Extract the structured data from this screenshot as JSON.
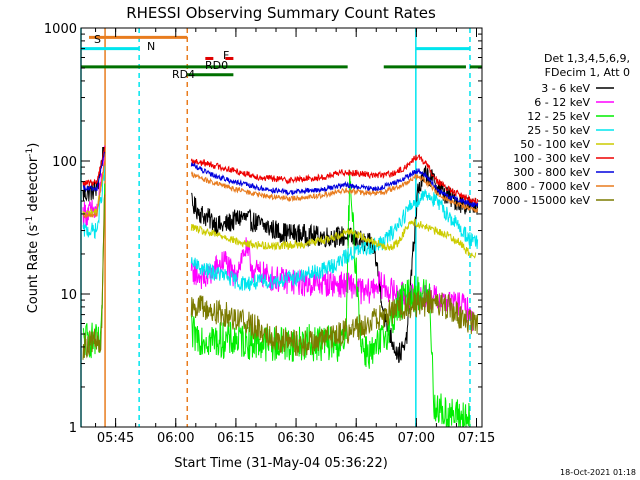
{
  "chart_data": {
    "type": "line",
    "title": "RHESSI Observing Summary Count Rates",
    "xlabel": "Start Time (31-May-04 05:36:22)",
    "ylabel_main": "Count Rate (s",
    "ylabel_sup1": "-1",
    "ylabel_mid": " detector",
    "ylabel_sup2": "-1",
    "ylabel_end": ")",
    "yscale": "log",
    "ylim": [
      1,
      1000
    ],
    "yticks": [
      {
        "value": 1,
        "label": "1"
      },
      {
        "value": 10,
        "label": "10"
      },
      {
        "value": 100,
        "label": "100"
      },
      {
        "value": 1000,
        "label": "1000"
      }
    ],
    "x_unit": "minutes since 05:36:22",
    "xlim": [
      0,
      100
    ],
    "xticks": [
      {
        "value": 8.63,
        "label": "05:45"
      },
      {
        "value": 23.63,
        "label": "06:00"
      },
      {
        "value": 38.63,
        "label": "06:15"
      },
      {
        "value": 53.63,
        "label": "06:30"
      },
      {
        "value": 68.63,
        "label": "06:45"
      },
      {
        "value": 83.63,
        "label": "07:00"
      },
      {
        "value": 98.63,
        "label": "07:15"
      }
    ],
    "legend": {
      "header1": "Det 1,3,4,5,6,9,",
      "header2": "FDecim 1, Att 0"
    },
    "flags": [
      {
        "label": "S",
        "color": "#e87c1e",
        "y": 850,
        "segments": [
          [
            2,
            26.5
          ]
        ]
      },
      {
        "label": "N",
        "color": "#00e5ee",
        "y": 700,
        "segments": [
          [
            0,
            14.5
          ],
          [
            83.5,
            97
          ]
        ]
      },
      {
        "label": "RD0",
        "color": "#007000",
        "y": 510,
        "segments": [
          [
            0,
            66.5
          ],
          [
            75.5,
            96
          ],
          [
            97,
            100
          ]
        ]
      },
      {
        "label": "RD4",
        "color": "#007000",
        "y": 445,
        "segments": [
          [
            26.5,
            38
          ]
        ]
      },
      {
        "label": "F",
        "color": "#e00000",
        "y": 590,
        "segments": [
          [
            31,
            33
          ],
          [
            36,
            38
          ]
        ]
      }
    ],
    "vlines": [
      {
        "x": 0,
        "color": "#00e5ee",
        "dash": false
      },
      {
        "x": 6,
        "color": "#e87c1e",
        "dash": false
      },
      {
        "x": 14.5,
        "color": "#00e5ee",
        "dash": true
      },
      {
        "x": 26.5,
        "color": "#e87c1e",
        "dash": true
      },
      {
        "x": 83.5,
        "color": "#00e5ee",
        "dash": false
      },
      {
        "x": 97,
        "color": "#00e5ee",
        "dash": true
      }
    ],
    "gap": [
      6,
      27.5
    ],
    "series": [
      {
        "name": "3 - 6 keV",
        "color": "#000000",
        "noise": 0.08,
        "points": [
          [
            0.5,
            56
          ],
          [
            4,
            62
          ],
          [
            6,
            140
          ],
          [
            27.5,
            48
          ],
          [
            30,
            40
          ],
          [
            35,
            32
          ],
          [
            40,
            38
          ],
          [
            45,
            33
          ],
          [
            50,
            29
          ],
          [
            55,
            28
          ],
          [
            60,
            27
          ],
          [
            66,
            27
          ],
          [
            70,
            25
          ],
          [
            73,
            23
          ],
          [
            76,
            6
          ],
          [
            79,
            3.5
          ],
          [
            81,
            4
          ],
          [
            84,
            60
          ],
          [
            86,
            80
          ],
          [
            88,
            70
          ],
          [
            91,
            55
          ],
          [
            94,
            50
          ],
          [
            96,
            47
          ],
          [
            97.5,
            45
          ],
          [
            99,
            45
          ]
        ]
      },
      {
        "name": "6 - 12 keV",
        "color": "#ff00ff",
        "noise": 0.1,
        "points": [
          [
            0.5,
            40
          ],
          [
            4,
            42
          ],
          [
            6,
            110
          ],
          [
            27.5,
            15
          ],
          [
            31,
            13
          ],
          [
            34,
            16
          ],
          [
            36,
            18
          ],
          [
            38,
            13
          ],
          [
            41,
            22
          ],
          [
            43,
            15
          ],
          [
            48,
            13
          ],
          [
            55,
            12
          ],
          [
            62,
            12
          ],
          [
            68,
            11.5
          ],
          [
            71,
            10
          ],
          [
            74,
            12
          ],
          [
            79,
            10
          ],
          [
            82,
            9.5
          ],
          [
            84,
            9.5
          ],
          [
            87,
            9.5
          ],
          [
            90,
            9
          ],
          [
            93,
            8.5
          ],
          [
            96,
            8
          ],
          [
            98,
            6
          ]
        ]
      },
      {
        "name": "12 - 25 keV",
        "color": "#00ee00",
        "noise": 0.14,
        "points": [
          [
            0.5,
            4.5
          ],
          [
            3,
            4.5
          ],
          [
            5,
            4
          ],
          [
            6,
            70
          ],
          [
            27.5,
            5
          ],
          [
            33,
            4.5
          ],
          [
            40,
            4.5
          ],
          [
            48,
            4.2
          ],
          [
            56,
            4.3
          ],
          [
            62,
            4.3
          ],
          [
            66,
            4.2
          ],
          [
            67,
            70
          ],
          [
            70,
            4
          ],
          [
            73,
            3.5
          ],
          [
            76,
            5
          ],
          [
            79,
            8
          ],
          [
            82,
            10
          ],
          [
            85,
            10
          ],
          [
            87,
            9.5
          ],
          [
            88,
            1.5
          ],
          [
            90,
            1.3
          ],
          [
            93,
            1.2
          ],
          [
            95,
            1.2
          ],
          [
            97,
            1.1
          ]
        ]
      },
      {
        "name": "25 - 50 keV",
        "color": "#00e5ee",
        "noise": 0.06,
        "points": [
          [
            0.5,
            30
          ],
          [
            4,
            30
          ],
          [
            6,
            90
          ],
          [
            27.5,
            17
          ],
          [
            31,
            15
          ],
          [
            35,
            14
          ],
          [
            40,
            12
          ],
          [
            48,
            12.5
          ],
          [
            55,
            13.5
          ],
          [
            60,
            15
          ],
          [
            64,
            17
          ],
          [
            67,
            20
          ],
          [
            71,
            22
          ],
          [
            75,
            24
          ],
          [
            78,
            30
          ],
          [
            82,
            45
          ],
          [
            86,
            58
          ],
          [
            89,
            48
          ],
          [
            92,
            38
          ],
          [
            95,
            30
          ],
          [
            97.5,
            25
          ],
          [
            99,
            24
          ]
        ]
      },
      {
        "name": "50 - 100 keV",
        "color": "#cccc00",
        "noise": 0.03,
        "points": [
          [
            0.5,
            40
          ],
          [
            4,
            42
          ],
          [
            6,
            100
          ],
          [
            27.5,
            32
          ],
          [
            31,
            29
          ],
          [
            36,
            27
          ],
          [
            40,
            24
          ],
          [
            47,
            23
          ],
          [
            55,
            23.5
          ],
          [
            62,
            26
          ],
          [
            67,
            30
          ],
          [
            70,
            27
          ],
          [
            74,
            24
          ],
          [
            76,
            22
          ],
          [
            79,
            24
          ],
          [
            82,
            35
          ],
          [
            85,
            33
          ],
          [
            88,
            30
          ],
          [
            91,
            28
          ],
          [
            94,
            25
          ],
          [
            97,
            20
          ],
          [
            98.5,
            20
          ]
        ]
      },
      {
        "name": "100 - 300 keV",
        "color": "#ee0000",
        "noise": 0.025,
        "points": [
          [
            0.5,
            67
          ],
          [
            4,
            70
          ],
          [
            6,
            130
          ],
          [
            27.5,
            100
          ],
          [
            32,
            95
          ],
          [
            38,
            85
          ],
          [
            45,
            75
          ],
          [
            52,
            72
          ],
          [
            60,
            75
          ],
          [
            66,
            83
          ],
          [
            70,
            80
          ],
          [
            74,
            78
          ],
          [
            78,
            80
          ],
          [
            81,
            90
          ],
          [
            84,
            110
          ],
          [
            86,
            95
          ],
          [
            89,
            70
          ],
          [
            92,
            60
          ],
          [
            95,
            55
          ],
          [
            97.5,
            50
          ],
          [
            99,
            50
          ]
        ]
      },
      {
        "name": "300 - 800 keV",
        "color": "#0000dd",
        "noise": 0.02,
        "points": [
          [
            0.5,
            62
          ],
          [
            4,
            62
          ],
          [
            6,
            120
          ],
          [
            27.5,
            95
          ],
          [
            32,
            80
          ],
          [
            38,
            70
          ],
          [
            45,
            62
          ],
          [
            52,
            58
          ],
          [
            60,
            61
          ],
          [
            66,
            66
          ],
          [
            70,
            63
          ],
          [
            74,
            62
          ],
          [
            78,
            68
          ],
          [
            81,
            75
          ],
          [
            84,
            85
          ],
          [
            86,
            78
          ],
          [
            89,
            60
          ],
          [
            92,
            53
          ],
          [
            95,
            50
          ],
          [
            97.5,
            47
          ],
          [
            99,
            47
          ]
        ]
      },
      {
        "name": "800 - 7000 keV",
        "color": "#e87c1e",
        "noise": 0.02,
        "points": [
          [
            0.5,
            38
          ],
          [
            4,
            40
          ],
          [
            6,
            105
          ],
          [
            27.5,
            80
          ],
          [
            32,
            70
          ],
          [
            38,
            62
          ],
          [
            45,
            55
          ],
          [
            52,
            52
          ],
          [
            60,
            55
          ],
          [
            66,
            60
          ],
          [
            70,
            58
          ],
          [
            74,
            57
          ],
          [
            78,
            62
          ],
          [
            81,
            68
          ],
          [
            84,
            78
          ],
          [
            86,
            70
          ],
          [
            89,
            57
          ],
          [
            92,
            50
          ],
          [
            95,
            46
          ],
          [
            97.5,
            43
          ],
          [
            99,
            43
          ]
        ]
      },
      {
        "name": "7000 - 15000 keV",
        "color": "#7b7b00",
        "noise": 0.1,
        "points": [
          [
            0.5,
            4
          ],
          [
            3,
            4.5
          ],
          [
            5,
            4
          ],
          [
            6,
            80
          ],
          [
            27.5,
            8.5
          ],
          [
            32,
            7.5
          ],
          [
            36,
            7
          ],
          [
            40,
            6.5
          ],
          [
            44,
            5.5
          ],
          [
            50,
            4.5
          ],
          [
            55,
            4.2
          ],
          [
            60,
            4.5
          ],
          [
            64,
            5
          ],
          [
            68,
            5.5
          ],
          [
            72,
            6
          ],
          [
            76,
            7
          ],
          [
            80,
            8
          ],
          [
            84,
            8.5
          ],
          [
            88,
            8.5
          ],
          [
            92,
            8
          ],
          [
            95,
            6.5
          ],
          [
            97.5,
            6
          ],
          [
            99,
            6
          ]
        ]
      }
    ]
  },
  "footer": {
    "date_stamp": "18-Oct-2021 01:18"
  }
}
